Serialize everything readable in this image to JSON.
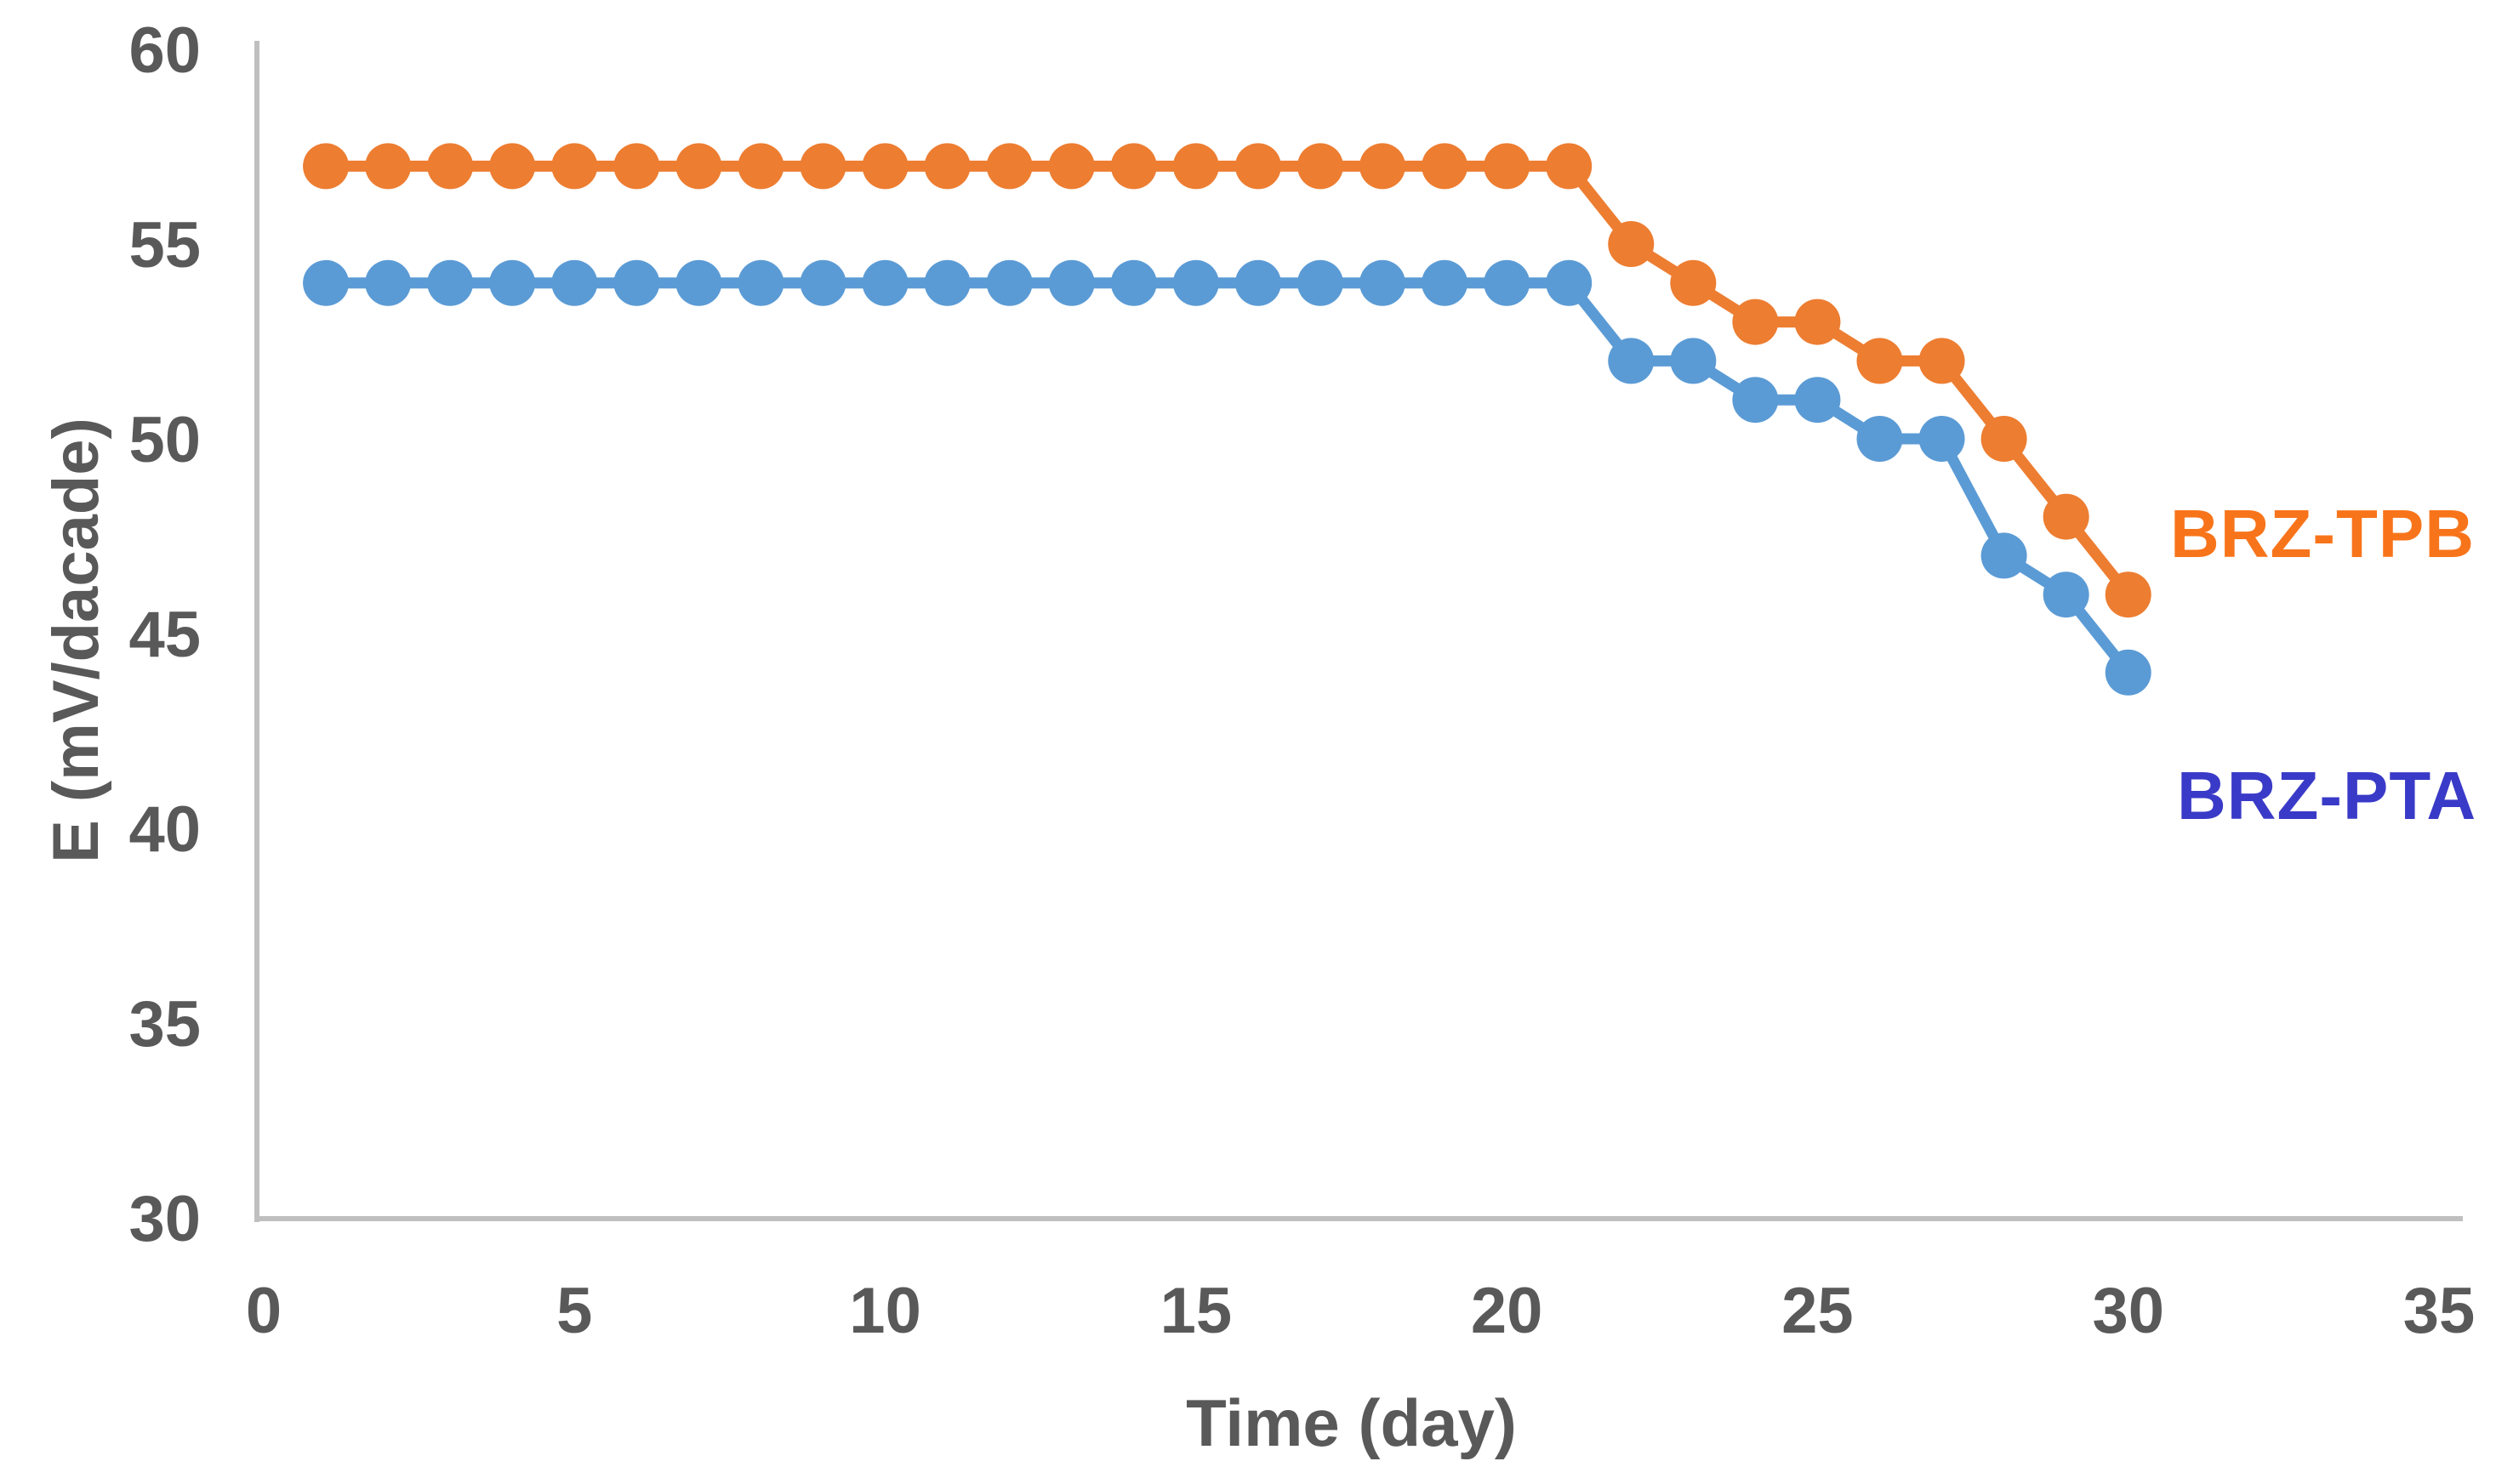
{
  "chart_data": {
    "type": "line",
    "title": "",
    "xlabel": "Time (day)",
    "ylabel": "E (mV/dacade)",
    "xlim": [
      0,
      35
    ],
    "ylim": [
      30,
      60
    ],
    "x_ticks": [
      "0",
      "5",
      "10",
      "15",
      "20",
      "25",
      "30",
      "35"
    ],
    "x_tick_values": [
      0,
      5,
      10,
      15,
      20,
      25,
      30,
      35
    ],
    "y_ticks": [
      "30",
      "35",
      "40",
      "45",
      "50",
      "55",
      "60"
    ],
    "y_tick_values": [
      30,
      35,
      40,
      45,
      50,
      55,
      60
    ],
    "grid": false,
    "legend_position": "inline-right-of-last-points",
    "x": [
      1,
      2,
      3,
      4,
      5,
      6,
      7,
      8,
      9,
      10,
      11,
      12,
      13,
      14,
      15,
      16,
      17,
      18,
      19,
      20,
      21,
      22,
      23,
      24,
      25,
      26,
      27,
      28,
      29,
      30
    ],
    "series": [
      {
        "name": "BRZ-TPB",
        "marker": "circle",
        "line_color": "#ED7D31",
        "label_color": "#F8741A",
        "values": [
          57,
          57,
          57,
          57,
          57,
          57,
          57,
          57,
          57,
          57,
          57,
          57,
          57,
          57,
          57,
          57,
          57,
          57,
          57,
          57,
          57,
          55,
          54,
          53,
          53,
          52,
          52,
          50,
          48,
          46
        ]
      },
      {
        "name": "BRZ-PTA",
        "marker": "circle",
        "line_color": "#5B9BD5",
        "label_color": "#3A3AC8",
        "values": [
          54,
          54,
          54,
          54,
          54,
          54,
          54,
          54,
          54,
          54,
          54,
          54,
          54,
          54,
          54,
          54,
          54,
          54,
          54,
          54,
          54,
          52,
          52,
          51,
          51,
          50,
          50,
          47,
          46,
          44
        ]
      }
    ],
    "axis_color": "#BFBFBF",
    "tick_label_color": "#595959",
    "axis_title_color": "#595959"
  }
}
